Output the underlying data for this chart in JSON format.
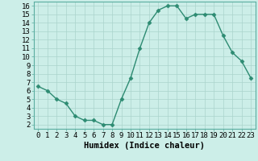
{
  "x": [
    0,
    1,
    2,
    3,
    4,
    5,
    6,
    7,
    8,
    9,
    10,
    11,
    12,
    13,
    14,
    15,
    16,
    17,
    18,
    19,
    20,
    21,
    22,
    23
  ],
  "y": [
    6.5,
    6.0,
    5.0,
    4.5,
    3.0,
    2.5,
    2.5,
    2.0,
    2.0,
    5.0,
    7.5,
    11.0,
    14.0,
    15.5,
    16.0,
    16.0,
    14.5,
    15.0,
    15.0,
    15.0,
    12.5,
    10.5,
    9.5,
    7.5
  ],
  "line_color": "#2d8b72",
  "marker": "D",
  "markersize": 2.5,
  "linewidth": 1.0,
  "xlabel": "Humidex (Indice chaleur)",
  "xlim": [
    -0.5,
    23.5
  ],
  "ylim": [
    1.5,
    16.5
  ],
  "yticks": [
    2,
    3,
    4,
    5,
    6,
    7,
    8,
    9,
    10,
    11,
    12,
    13,
    14,
    15,
    16
  ],
  "xticks": [
    0,
    1,
    2,
    3,
    4,
    5,
    6,
    7,
    8,
    9,
    10,
    11,
    12,
    13,
    14,
    15,
    16,
    17,
    18,
    19,
    20,
    21,
    22,
    23
  ],
  "xtick_labels": [
    "0",
    "1",
    "2",
    "3",
    "4",
    "5",
    "6",
    "7",
    "8",
    "9",
    "10",
    "11",
    "12",
    "13",
    "14",
    "15",
    "16",
    "17",
    "18",
    "19",
    "20",
    "21",
    "22",
    "23"
  ],
  "background_color": "#cceee8",
  "grid_color": "#aad4cc",
  "xlabel_fontsize": 7.5,
  "tick_fontsize": 6.5,
  "xlabel_fontweight": "bold"
}
